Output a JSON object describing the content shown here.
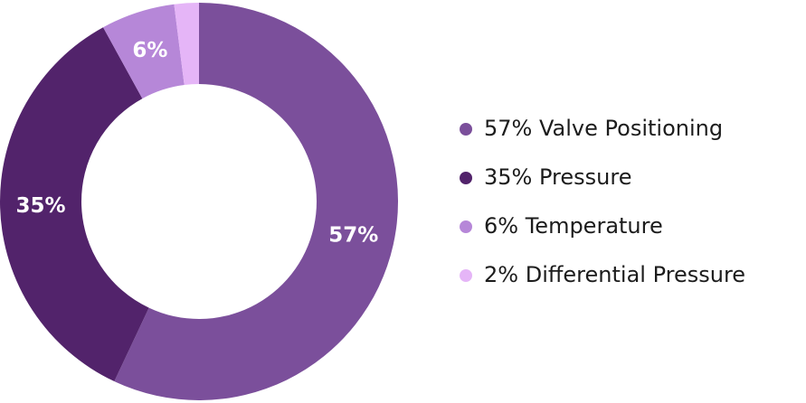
{
  "chart_data": {
    "type": "donut",
    "categories": [
      "Valve Positioning",
      "Pressure",
      "Temperature",
      "Differential Pressure"
    ],
    "values": [
      57,
      35,
      6,
      2
    ],
    "value_labels": [
      "57%",
      "35%",
      "6%",
      "2%"
    ],
    "colors": [
      "#7b4f9b",
      "#52236b",
      "#b687d8",
      "#e5b5f7"
    ]
  }
}
